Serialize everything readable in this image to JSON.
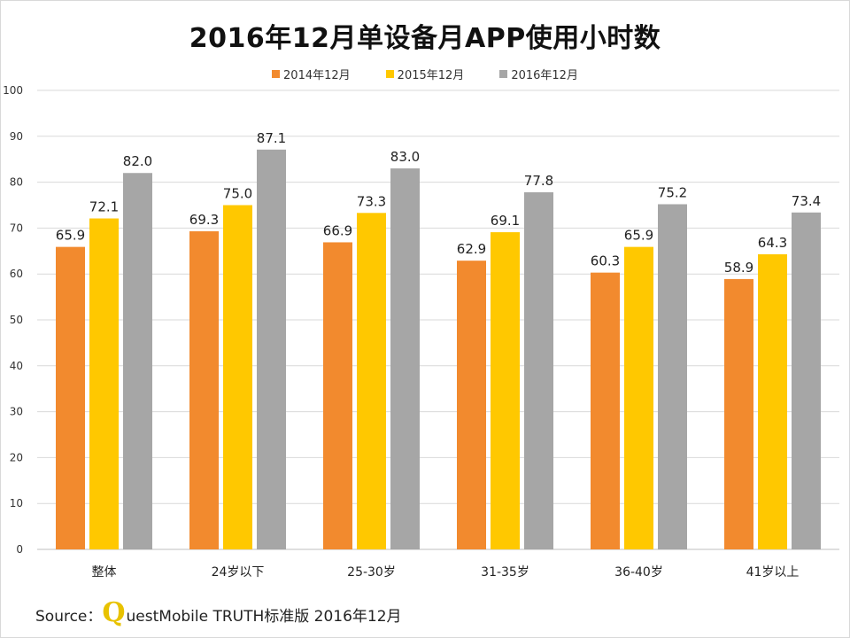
{
  "title": "2016年12月单设备月APP使用小时数",
  "source": {
    "prefix": "Source：",
    "logo_letter": "Q",
    "text": "uestMobile TRUTH标准版 2016年12月"
  },
  "chart_data": {
    "type": "bar",
    "title": "2016年12月单设备月APP使用小时数",
    "categories": [
      "整体",
      "24岁以下",
      "25-30岁",
      "31-35岁",
      "36-40岁",
      "41岁以上"
    ],
    "series": [
      {
        "name": "2014年12月",
        "color": "#f28a2e",
        "values": [
          65.9,
          69.3,
          66.9,
          62.9,
          60.3,
          58.9
        ]
      },
      {
        "name": "2015年12月",
        "color": "#ffc800",
        "values": [
          72.1,
          75.0,
          73.3,
          69.1,
          65.9,
          64.3
        ]
      },
      {
        "name": "2016年12月",
        "color": "#a6a6a6",
        "values": [
          82.0,
          87.1,
          83.0,
          77.8,
          75.2,
          73.4
        ]
      }
    ],
    "ylim": [
      0,
      100
    ],
    "yticks": [
      0,
      10,
      20,
      30,
      40,
      50,
      60,
      70,
      80,
      90,
      100
    ],
    "grid": true,
    "legend": "top-center",
    "xlabel": "",
    "ylabel": ""
  }
}
